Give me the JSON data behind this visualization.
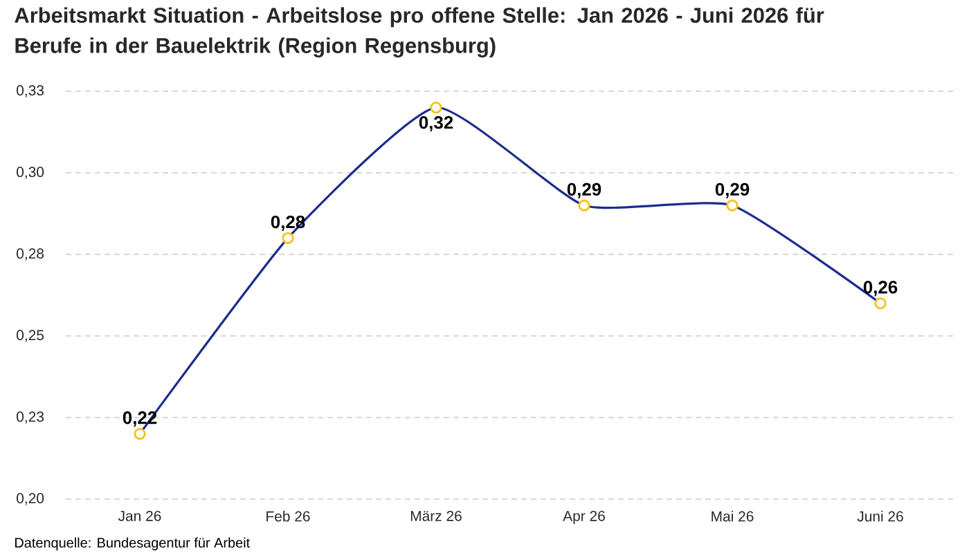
{
  "chart_data": {
    "type": "line",
    "title": "Arbeitsmarkt Situation - Arbeitslose pro offene Stelle: Jan 2026 - Juni 2026 für Berufe in der Bauelektrik (Region Regensburg)",
    "annotations": [
      "Datenquelle: Bundesagentur für Arbeit"
    ],
    "categories": [
      "Jan 26",
      "Feb 26",
      "März 26",
      "Apr 26",
      "Mai 26",
      "Juni 26"
    ],
    "series": [
      {
        "color": "#1c2c8c",
        "colors": [
          "#f5c21b",
          "#f5c21b",
          "#f5c21b",
          "#f5c21b",
          "#f5c21b",
          "#f5c21b"
        ],
        "values": [
          0.22,
          0.28,
          0.32,
          0.29,
          0.29,
          0.26
        ],
        "value_labels": [
          "0,22",
          "0,28",
          "0,32",
          "0,29",
          "0,29",
          "0,26"
        ]
      }
    ],
    "ylim": [
      0.2,
      0.325
    ],
    "yticks": [
      {
        "value": 0.2,
        "label": "0,20"
      },
      {
        "value": 0.225,
        "label": "0,23"
      },
      {
        "value": 0.25,
        "label": "0,25"
      },
      {
        "value": 0.275,
        "label": "0,28"
      },
      {
        "value": 0.3,
        "label": "0,30"
      },
      {
        "value": 0.325,
        "label": "0,33"
      }
    ],
    "grid": "y",
    "marker": "circle",
    "line_style": "solid"
  }
}
